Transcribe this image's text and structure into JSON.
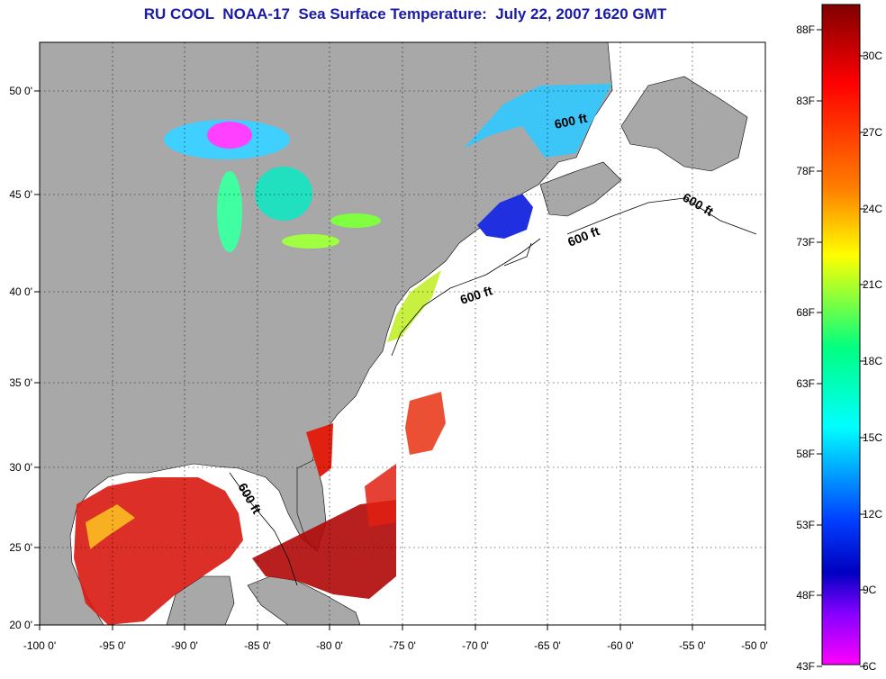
{
  "title": "RU COOL  NOAA-17  Sea Surface Temperature:  July 22, 2007 1620 GMT",
  "map": {
    "lon_ticks": [
      "-100 0'",
      "-95 0'",
      "-90 0'",
      "-85 0'",
      "-80 0'",
      "-75 0'",
      "-70 0'",
      "-65 0'",
      "-60 0'",
      "-55 0'",
      "-50 0'"
    ],
    "lat_ticks": [
      "50 0'",
      "45 0'",
      "40 0'",
      "35 0'",
      "30 0'",
      "25 0'",
      "20 0'"
    ],
    "lon_range": [
      -100,
      -50
    ],
    "lat_range": [
      20,
      52.3
    ],
    "contour_labels": [
      "600 ft",
      "600 ft",
      "600 ft",
      "600 ft",
      "600 ft"
    ],
    "colors": {
      "land": "#a8a8a8",
      "ocean_nodata": "#ffffff",
      "frame": "#000000"
    }
  },
  "colorbar": {
    "fahrenheit_labels": [
      "88F",
      "83F",
      "78F",
      "73F",
      "68F",
      "63F",
      "58F",
      "53F",
      "48F",
      "43F"
    ],
    "celsius_labels": [
      "30C",
      "27C",
      "24C",
      "21C",
      "18C",
      "15C",
      "12C",
      "9C",
      "6C"
    ],
    "range_c": [
      6,
      32
    ],
    "gradient": [
      "#800000",
      "#ff0000",
      "#ff8000",
      "#ffff00",
      "#00ff80",
      "#00ffff",
      "#0040ff",
      "#0000c0",
      "#8000ff",
      "#ff00ff"
    ]
  }
}
